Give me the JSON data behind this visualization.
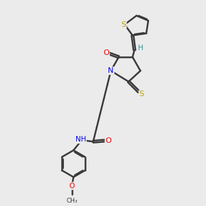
{
  "background_color": "#ebebeb",
  "bond_color": "#3a3a3a",
  "atom_colors": {
    "S": "#b8a000",
    "N": "#0000ee",
    "O": "#ee0000",
    "H": "#2a9090",
    "C": "#3a3a3a"
  },
  "bond_width": 1.8,
  "dbo": 0.055,
  "figsize": [
    3.0,
    3.0
  ],
  "dpi": 100,
  "xlim": [
    0,
    10
  ],
  "ylim": [
    0,
    10
  ],
  "font_size": 7.5
}
